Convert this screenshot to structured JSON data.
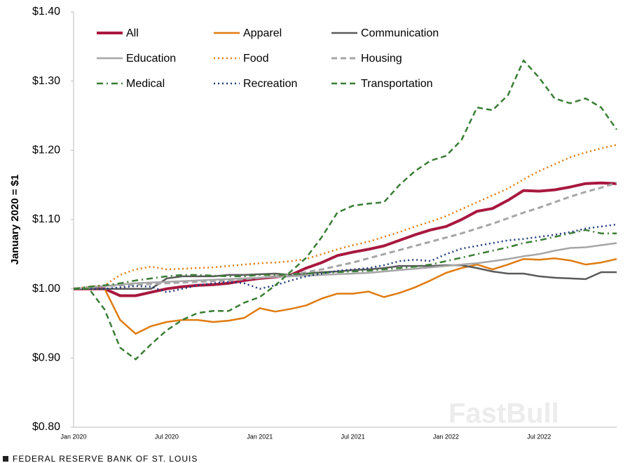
{
  "chart_data": {
    "type": "line",
    "y_label": "January 2020 = $1",
    "source": "FEDERAL RESERVE BANK OF ST. LOUIS",
    "watermark": "FastBull",
    "categories": [
      "Jan 2020",
      null,
      null,
      null,
      null,
      null,
      "Jul 2020",
      null,
      null,
      null,
      null,
      null,
      "Jan 2021",
      null,
      null,
      null,
      null,
      null,
      "Jul 2021",
      null,
      null,
      null,
      null,
      null,
      "Jan 2022",
      null,
      null,
      null,
      null,
      null,
      "Jul 2022",
      null,
      null,
      null,
      null,
      null
    ],
    "ylim": [
      0.8,
      1.4
    ],
    "yticks": [
      {
        "value": 0.8,
        "label": "$0.80"
      },
      {
        "value": 0.9,
        "label": "$0.90"
      },
      {
        "value": 1.0,
        "label": "$1.00"
      },
      {
        "value": 1.1,
        "label": "$1.10"
      },
      {
        "value": 1.2,
        "label": "$1.20"
      },
      {
        "value": 1.3,
        "label": "$1.30"
      },
      {
        "value": 1.4,
        "label": "$1.40"
      }
    ],
    "grid": false,
    "legend": "top-left",
    "series": [
      {
        "name": "All",
        "color": "#a8183f",
        "style": "solid",
        "linewidth": 4,
        "values": [
          1.0,
          1.0,
          1.0,
          0.99,
          0.99,
          0.995,
          1.0,
          1.003,
          1.005,
          1.006,
          1.008,
          1.012,
          1.015,
          1.017,
          1.02,
          1.03,
          1.038,
          1.048,
          1.053,
          1.057,
          1.062,
          1.07,
          1.078,
          1.085,
          1.09,
          1.1,
          1.112,
          1.116,
          1.128,
          1.142,
          1.141,
          1.143,
          1.147,
          1.152,
          1.153,
          1.152
        ]
      },
      {
        "name": "Apparel",
        "color": "#e07b10",
        "style": "solid",
        "linewidth": 2.5,
        "values": [
          1.0,
          1.0,
          1.0,
          0.955,
          0.935,
          0.946,
          0.952,
          0.955,
          0.955,
          0.952,
          0.954,
          0.958,
          0.972,
          0.967,
          0.971,
          0.976,
          0.986,
          0.993,
          0.993,
          0.996,
          0.988,
          0.994,
          1.002,
          1.012,
          1.023,
          1.03,
          1.035,
          1.028,
          1.035,
          1.043,
          1.042,
          1.044,
          1.041,
          1.035,
          1.038,
          1.043
        ]
      },
      {
        "name": "Communication",
        "color": "#5a5a5a",
        "style": "solid",
        "linewidth": 2.5,
        "values": [
          1.0,
          1.0,
          1.0,
          1.0,
          1.0,
          1.0,
          1.015,
          1.018,
          1.018,
          1.018,
          1.02,
          1.02,
          1.021,
          1.022,
          1.02,
          1.022,
          1.024,
          1.025,
          1.027,
          1.028,
          1.03,
          1.033,
          1.033,
          1.033,
          1.034,
          1.034,
          1.03,
          1.025,
          1.022,
          1.022,
          1.018,
          1.016,
          1.015,
          1.014,
          1.024,
          1.024
        ]
      },
      {
        "name": "Education",
        "color": "#a6a6a6",
        "style": "solid",
        "linewidth": 2.5,
        "values": [
          1.0,
          1.002,
          1.004,
          1.006,
          1.008,
          1.009,
          1.01,
          1.011,
          1.012,
          1.013,
          1.014,
          1.015,
          1.016,
          1.017,
          1.018,
          1.019,
          1.02,
          1.021,
          1.022,
          1.023,
          1.025,
          1.027,
          1.029,
          1.031,
          1.033,
          1.035,
          1.037,
          1.04,
          1.043,
          1.047,
          1.05,
          1.055,
          1.059,
          1.06,
          1.063,
          1.066
        ]
      },
      {
        "name": "Food",
        "color": "#e07b10",
        "style": "dotted",
        "linewidth": 2.5,
        "values": [
          1.0,
          1.003,
          1.005,
          1.02,
          1.028,
          1.032,
          1.028,
          1.029,
          1.03,
          1.031,
          1.033,
          1.035,
          1.037,
          1.038,
          1.04,
          1.043,
          1.05,
          1.057,
          1.063,
          1.068,
          1.075,
          1.082,
          1.09,
          1.097,
          1.105,
          1.115,
          1.125,
          1.135,
          1.145,
          1.158,
          1.17,
          1.18,
          1.19,
          1.197,
          1.203,
          1.208
        ]
      },
      {
        "name": "Housing",
        "color": "#a6a6a6",
        "style": "dashed",
        "linewidth": 3,
        "values": [
          1.0,
          1.002,
          1.004,
          1.005,
          1.006,
          1.007,
          1.008,
          1.009,
          1.01,
          1.011,
          1.012,
          1.014,
          1.016,
          1.018,
          1.02,
          1.024,
          1.028,
          1.033,
          1.038,
          1.044,
          1.05,
          1.056,
          1.062,
          1.068,
          1.074,
          1.08,
          1.087,
          1.094,
          1.102,
          1.11,
          1.117,
          1.125,
          1.133,
          1.14,
          1.146,
          1.153
        ]
      },
      {
        "name": "Medical",
        "color": "#3a7d35",
        "style": "dashdot",
        "linewidth": 2.5,
        "values": [
          1.0,
          1.003,
          1.005,
          1.008,
          1.012,
          1.015,
          1.018,
          1.02,
          1.02,
          1.019,
          1.018,
          1.018,
          1.02,
          1.02,
          1.021,
          1.022,
          1.023,
          1.024,
          1.025,
          1.026,
          1.028,
          1.03,
          1.032,
          1.035,
          1.04,
          1.045,
          1.05,
          1.055,
          1.06,
          1.066,
          1.07,
          1.075,
          1.08,
          1.085,
          1.08,
          1.08
        ]
      },
      {
        "name": "Recreation",
        "color": "#1f3b7a",
        "style": "dotted",
        "linewidth": 2.5,
        "values": [
          1.0,
          1.0,
          1.0,
          1.002,
          1.004,
          1.003,
          0.995,
          1.0,
          1.005,
          1.008,
          1.01,
          1.008,
          1.0,
          1.005,
          1.012,
          1.018,
          1.022,
          1.026,
          1.028,
          1.03,
          1.034,
          1.04,
          1.042,
          1.04,
          1.05,
          1.058,
          1.062,
          1.066,
          1.07,
          1.072,
          1.075,
          1.078,
          1.082,
          1.087,
          1.09,
          1.093
        ]
      },
      {
        "name": "Transportation",
        "color": "#3a7d35",
        "style": "dashed",
        "linewidth": 2.5,
        "values": [
          1.0,
          1.0,
          0.97,
          0.915,
          0.898,
          0.92,
          0.94,
          0.955,
          0.965,
          0.968,
          0.968,
          0.98,
          0.988,
          1.005,
          1.025,
          1.045,
          1.075,
          1.11,
          1.12,
          1.123,
          1.125,
          1.15,
          1.17,
          1.185,
          1.192,
          1.215,
          1.262,
          1.258,
          1.28,
          1.33,
          1.305,
          1.275,
          1.268,
          1.275,
          1.262,
          1.23
        ]
      }
    ]
  }
}
